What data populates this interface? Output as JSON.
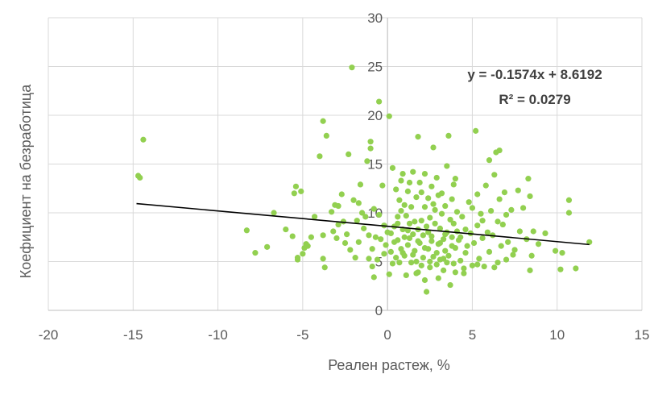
{
  "chart_data": {
    "type": "scatter",
    "title": "",
    "xlabel": "Реален растеж, %",
    "ylabel": "Коефициент на безработица",
    "xlim": [
      -20,
      15
    ],
    "ylim": [
      0,
      30
    ],
    "x_ticks": [
      "-20",
      "-15",
      "-10",
      "-5",
      "0",
      "5",
      "10",
      "15"
    ],
    "y_ticks": [
      "0",
      "5",
      "10",
      "15",
      "20",
      "25",
      "30"
    ],
    "grid": "vertical-and-horizontal",
    "marker_color": "#92d050",
    "trendline": {
      "type": "linear",
      "slope": -0.1574,
      "intercept": 8.6192,
      "x_range": [
        -14.8,
        11.9
      ],
      "color": "#000000",
      "equation_label": "y = -0.1574x + 8.6192",
      "r2_label": "R² = 0.0279"
    },
    "points": [
      [
        -14.7,
        13.8
      ],
      [
        -14.6,
        13.6
      ],
      [
        -14.4,
        17.5
      ],
      [
        -8.3,
        8.2
      ],
      [
        -7.8,
        5.9
      ],
      [
        -7.1,
        6.5
      ],
      [
        -6.7,
        10.0
      ],
      [
        -5.6,
        7.6
      ],
      [
        -5.5,
        12.0
      ],
      [
        -5.4,
        12.7
      ],
      [
        -5.3,
        5.4
      ],
      [
        -5.3,
        5.2
      ],
      [
        -5.1,
        12.2
      ],
      [
        -5.0,
        5.8
      ],
      [
        -4.8,
        6.8
      ],
      [
        -4.7,
        6.6
      ],
      [
        -4.5,
        7.5
      ],
      [
        -4.3,
        9.6
      ],
      [
        -4.0,
        15.8
      ],
      [
        -3.8,
        19.4
      ],
      [
        -3.8,
        7.7
      ],
      [
        -3.7,
        4.4
      ],
      [
        -3.6,
        17.9
      ],
      [
        -3.8,
        5.3
      ],
      [
        -3.3,
        10.1
      ],
      [
        -3.1,
        10.8
      ],
      [
        -3.0,
        7.4
      ],
      [
        -2.9,
        10.7
      ],
      [
        -2.9,
        8.8
      ],
      [
        -2.7,
        11.9
      ],
      [
        -2.5,
        6.9
      ],
      [
        -2.4,
        7.8
      ],
      [
        -2.3,
        16.0
      ],
      [
        -2.2,
        6.2
      ],
      [
        -2.1,
        24.9
      ],
      [
        -2.0,
        11.3
      ],
      [
        -1.9,
        5.4
      ],
      [
        -1.8,
        9.2
      ],
      [
        -1.7,
        7.0
      ],
      [
        -1.7,
        11.0
      ],
      [
        -1.6,
        12.9
      ],
      [
        -1.5,
        10.0
      ],
      [
        -1.4,
        8.4
      ],
      [
        -1.3,
        9.6
      ],
      [
        -1.2,
        15.3
      ],
      [
        -1.1,
        5.3
      ],
      [
        -1.0,
        16.6
      ],
      [
        -1.0,
        17.3
      ],
      [
        -0.9,
        4.5
      ],
      [
        -0.9,
        6.3
      ],
      [
        -0.8,
        10.4
      ],
      [
        -0.8,
        3.4
      ],
      [
        -0.7,
        7.5
      ],
      [
        -0.6,
        5.2
      ],
      [
        -0.5,
        21.4
      ],
      [
        -0.5,
        9.8
      ],
      [
        -0.4,
        7.3
      ],
      [
        -0.3,
        12.8
      ],
      [
        -0.2,
        8.7
      ],
      [
        -0.1,
        6.7
      ],
      [
        0.0,
        8.0
      ],
      [
        0.1,
        19.9
      ],
      [
        0.1,
        3.7
      ],
      [
        0.2,
        7.9
      ],
      [
        0.3,
        14.6
      ],
      [
        0.3,
        4.8
      ],
      [
        0.4,
        8.6
      ],
      [
        0.5,
        12.4
      ],
      [
        0.5,
        5.4
      ],
      [
        0.6,
        9.6
      ],
      [
        0.6,
        7.2
      ],
      [
        0.7,
        4.9
      ],
      [
        0.7,
        11.3
      ],
      [
        0.8,
        6.3
      ],
      [
        0.8,
        10.2
      ],
      [
        0.9,
        14.0
      ],
      [
        0.9,
        8.3
      ],
      [
        1.0,
        5.6
      ],
      [
        1.0,
        7.5
      ],
      [
        1.1,
        9.7
      ],
      [
        1.1,
        3.6
      ],
      [
        1.2,
        12.2
      ],
      [
        1.2,
        6.7
      ],
      [
        1.3,
        8.9
      ],
      [
        1.3,
        13.1
      ],
      [
        1.4,
        4.9
      ],
      [
        1.4,
        10.6
      ],
      [
        1.5,
        7.8
      ],
      [
        1.5,
        14.2
      ],
      [
        1.6,
        6.1
      ],
      [
        1.6,
        9.1
      ],
      [
        1.7,
        11.6
      ],
      [
        1.7,
        5.0
      ],
      [
        1.8,
        17.8
      ],
      [
        1.8,
        8.3
      ],
      [
        1.8,
        3.9
      ],
      [
        1.9,
        13.1
      ],
      [
        1.9,
        6.9
      ],
      [
        2.0,
        9.2
      ],
      [
        2.0,
        12.1
      ],
      [
        2.1,
        5.4
      ],
      [
        2.1,
        7.7
      ],
      [
        2.2,
        3.1
      ],
      [
        2.2,
        10.6
      ],
      [
        2.3,
        1.9
      ],
      [
        2.3,
        8.6
      ],
      [
        2.4,
        6.3
      ],
      [
        2.4,
        11.5
      ],
      [
        2.5,
        4.4
      ],
      [
        2.5,
        9.5
      ],
      [
        2.6,
        7.1
      ],
      [
        2.6,
        12.7
      ],
      [
        2.7,
        16.7
      ],
      [
        2.7,
        5.5
      ],
      [
        2.8,
        8.9
      ],
      [
        2.8,
        10.3
      ],
      [
        2.9,
        4.7
      ],
      [
        2.9,
        13.6
      ],
      [
        3.0,
        6.8
      ],
      [
        3.0,
        11.8
      ],
      [
        3.1,
        8.4
      ],
      [
        3.1,
        5.2
      ],
      [
        3.2,
        9.9
      ],
      [
        3.2,
        12.0
      ],
      [
        3.3,
        7.3
      ],
      [
        3.3,
        4.1
      ],
      [
        3.4,
        10.7
      ],
      [
        3.4,
        6.1
      ],
      [
        3.5,
        8.0
      ],
      [
        3.5,
        14.8
      ],
      [
        3.6,
        17.9
      ],
      [
        3.6,
        5.6
      ],
      [
        3.7,
        9.3
      ],
      [
        3.7,
        2.6
      ],
      [
        3.8,
        7.5
      ],
      [
        3.8,
        11.4
      ],
      [
        3.9,
        4.8
      ],
      [
        3.9,
        8.9
      ],
      [
        4.0,
        6.4
      ],
      [
        4.0,
        13.5
      ],
      [
        4.1,
        10.1
      ],
      [
        4.2,
        7.2
      ],
      [
        4.3,
        5.1
      ],
      [
        4.4,
        9.6
      ],
      [
        4.5,
        3.8
      ],
      [
        4.6,
        8.3
      ],
      [
        4.7,
        6.6
      ],
      [
        4.8,
        11.1
      ],
      [
        4.9,
        7.9
      ],
      [
        5.0,
        4.6
      ],
      [
        5.0,
        10.5
      ],
      [
        5.1,
        6.9
      ],
      [
        5.2,
        18.4
      ],
      [
        5.3,
        8.7
      ],
      [
        5.3,
        11.9
      ],
      [
        5.4,
        5.3
      ],
      [
        5.5,
        9.9
      ],
      [
        5.6,
        7.4
      ],
      [
        5.7,
        4.5
      ],
      [
        5.8,
        12.8
      ],
      [
        5.9,
        8.0
      ],
      [
        6.0,
        6.0
      ],
      [
        6.0,
        15.4
      ],
      [
        6.1,
        10.2
      ],
      [
        6.2,
        7.7
      ],
      [
        6.3,
        13.9
      ],
      [
        6.3,
        4.4
      ],
      [
        6.4,
        16.2
      ],
      [
        6.5,
        9.1
      ],
      [
        6.6,
        11.4
      ],
      [
        6.6,
        16.4
      ],
      [
        6.7,
        6.6
      ],
      [
        6.8,
        8.8
      ],
      [
        6.9,
        12.1
      ],
      [
        7.0,
        5.2
      ],
      [
        7.0,
        9.8
      ],
      [
        7.1,
        7.0
      ],
      [
        7.3,
        10.3
      ],
      [
        7.5,
        6.2
      ],
      [
        7.7,
        12.3
      ],
      [
        7.8,
        8.1
      ],
      [
        8.0,
        10.5
      ],
      [
        8.2,
        7.3
      ],
      [
        8.3,
        13.5
      ],
      [
        8.4,
        11.7
      ],
      [
        8.4,
        4.1
      ],
      [
        8.5,
        5.6
      ],
      [
        8.6,
        8.1
      ],
      [
        8.9,
        6.8
      ],
      [
        9.3,
        7.9
      ],
      [
        9.9,
        6.1
      ],
      [
        10.2,
        4.2
      ],
      [
        10.3,
        5.9
      ],
      [
        10.7,
        11.3
      ],
      [
        10.7,
        10.0
      ],
      [
        11.1,
        4.3
      ],
      [
        11.9,
        7.0
      ],
      [
        0.2,
        6.0
      ],
      [
        0.9,
        5.9
      ],
      [
        1.3,
        7.4
      ],
      [
        2.2,
        6.4
      ],
      [
        2.6,
        7.6
      ],
      [
        3.1,
        6.9
      ],
      [
        3.4,
        7.8
      ],
      [
        4.1,
        8.1
      ],
      [
        1.8,
        7.1
      ],
      [
        2.4,
        8.0
      ],
      [
        0.6,
        8.9
      ],
      [
        1.2,
        8.2
      ],
      [
        3.8,
        6.6
      ],
      [
        4.3,
        7.5
      ],
      [
        5.6,
        9.2
      ],
      [
        2.9,
        5.9
      ],
      [
        1.5,
        5.7
      ],
      [
        0.4,
        7.0
      ],
      [
        2.0,
        4.6
      ],
      [
        3.5,
        4.9
      ],
      [
        4.6,
        5.9
      ],
      [
        -0.2,
        5.8
      ],
      [
        -1.1,
        7.7
      ],
      [
        -2.6,
        9.1
      ],
      [
        -3.2,
        8.1
      ],
      [
        -4.9,
        6.4
      ],
      [
        -6.0,
        8.3
      ],
      [
        6.5,
        4.9
      ],
      [
        5.3,
        4.7
      ],
      [
        7.4,
        5.7
      ],
      [
        2.7,
        10.9
      ],
      [
        1.0,
        10.8
      ],
      [
        3.9,
        12.9
      ],
      [
        2.2,
        14.0
      ],
      [
        0.8,
        13.3
      ],
      [
        4.5,
        4.3
      ],
      [
        3.0,
        3.3
      ],
      [
        1.7,
        3.8
      ],
      [
        2.5,
        5.0
      ],
      [
        3.3,
        5.3
      ],
      [
        4.0,
        3.9
      ]
    ]
  }
}
